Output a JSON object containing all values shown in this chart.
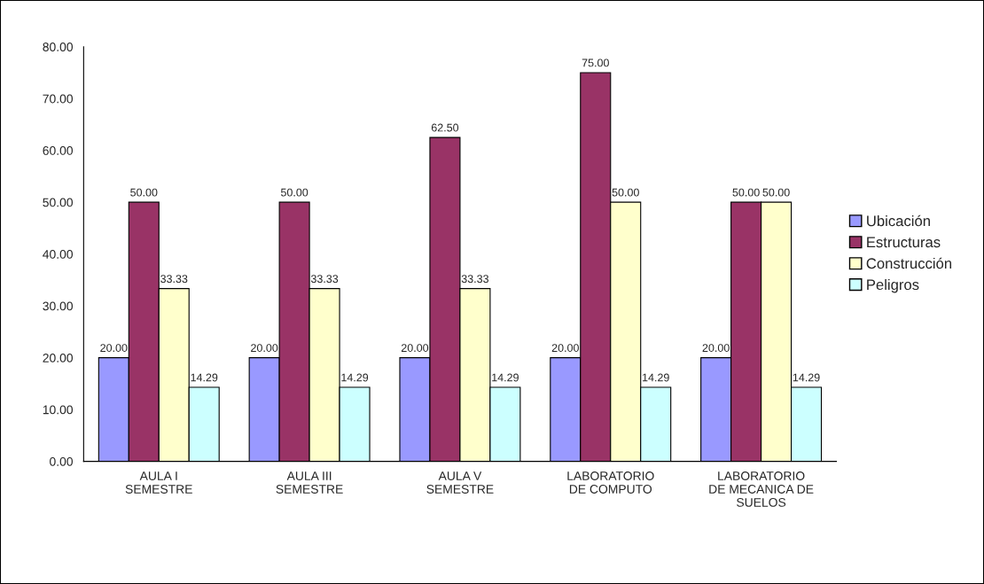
{
  "chart_data": {
    "type": "bar",
    "categories": [
      "AULA I\nSEMESTRE",
      "AULA III\nSEMESTRE",
      "AULA V\nSEMESTRE",
      "LABORATORIO\nDE COMPUTO",
      "LABORATORIO\nDE MECANICA DE\nSUELOS"
    ],
    "series": [
      {
        "name": "Ubicación",
        "color": "#9999ff",
        "values": [
          20,
          20,
          20,
          20,
          20
        ],
        "value_labels": [
          "20.00",
          "20.00",
          "20.00",
          "20.00",
          "20.00"
        ]
      },
      {
        "name": "Estructuras",
        "color": "#993366",
        "values": [
          50,
          50,
          62.5,
          75,
          50
        ],
        "value_labels": [
          "50.00",
          "50.00",
          "62.50",
          "75.00",
          "50.00"
        ]
      },
      {
        "name": "Construcción",
        "color": "#ffffcc",
        "values": [
          33.33,
          33.33,
          33.33,
          50,
          50
        ],
        "value_labels": [
          "33.33",
          "33.33",
          "33.33",
          "50.00",
          "50.00"
        ]
      },
      {
        "name": "Peligros",
        "color": "#ccffff",
        "values": [
          14.29,
          14.29,
          14.29,
          14.29,
          14.29
        ],
        "value_labels": [
          "14.29",
          "14.29",
          "14.29",
          "14.29",
          "14.29"
        ]
      }
    ],
    "ylim": [
      0,
      80
    ],
    "yticks": [
      {
        "value": 0,
        "label": "0.00"
      },
      {
        "value": 10,
        "label": "10.00"
      },
      {
        "value": 20,
        "label": "20.00"
      },
      {
        "value": 30,
        "label": "30.00"
      },
      {
        "value": 40,
        "label": "40.00"
      },
      {
        "value": 50,
        "label": "50.00"
      },
      {
        "value": 60,
        "label": "60.00"
      },
      {
        "value": 70,
        "label": "70.00"
      },
      {
        "value": 80,
        "label": "80.00"
      }
    ],
    "grid": false,
    "legend": "right"
  }
}
